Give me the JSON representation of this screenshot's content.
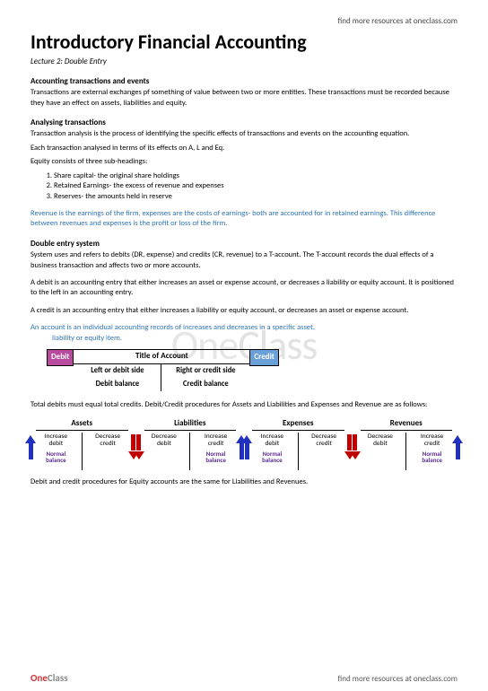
{
  "top_link": "find more resources at oneclass.com",
  "watermark": "OneClass",
  "title": "Introductory Financial Accounting",
  "subtitle": "Lecture 2: Double Entry",
  "s1_head": "Accounting transactions and events",
  "s1_body": "Transactions are external exchanges pf something of value between two or more entities. These transactions must be recorded because they have an effect on assets, liabilities and equity.",
  "s2_head": "Analysing transactions",
  "s2_body": "Transaction analysis is the process of identifying the specific effects of transactions and events on the accounting equation.",
  "s2_body2": "Each transaction analysed in terms of its effects on A, L and Eq.",
  "s2_body3": "Equity consists of three sub-headings:",
  "eq_list": [
    "Share capital- the original share holdings",
    "Retained Earnings- the excess of revenue and expenses",
    "Reserves- the amounts held in reserve"
  ],
  "blue1": "Revenue is the earnings of the firm, expenses are the costs of earnings- both are accounted for in retained earnings. This difference between revenues and expenses is the profit or loss of the firm.",
  "s3_head": "Double entry system",
  "s3_body": "System uses and refers to debits (DR, expense) and credits (CR, revenue) to a T-account. The T-account records the dual effects of a business transaction and affects two or more accounts.",
  "s3_body2": "A debit is an accounting entry that either increases an asset or expense account, or decreases a liability or equity account. It is positioned to the left in an accounting entry.",
  "s3_body3": "A credit is an accounting entry that either increases a liability or equity account, or decreases an asset or expense account.",
  "blue2a": "An account is an individual accounting records of increases and decreases in a specific asset,",
  "blue2b": "liability or equity item.",
  "t_account": {
    "debit": "Debit",
    "credit": "Credit",
    "title": "Title of Account",
    "left": "Left or debit side",
    "right": "Right or credit side",
    "dbal": "Debit balance",
    "cbal": "Credit balance"
  },
  "s4_body": "Total debits must equal total credits. Debit/Credit procedures for Assets and Liabilities and Expenses and Revenue are as follows:",
  "dc": {
    "blocks": [
      {
        "title": "Assets",
        "left": "Increase debit",
        "right": "Decrease credit",
        "left_arrow": "up",
        "right_arrow": "down",
        "normal_side": "left"
      },
      {
        "title": "Liabilities",
        "left": "Decrease debit",
        "right": "Increase credit",
        "left_arrow": "down",
        "right_arrow": "up",
        "normal_side": "right"
      },
      {
        "title": "Expenses",
        "left": "Increase debit",
        "right": "Decrease credit",
        "left_arrow": "up",
        "right_arrow": "down",
        "normal_side": "left"
      },
      {
        "title": "Revenues",
        "left": "Decrease debit",
        "right": "Increase credit",
        "left_arrow": "down",
        "right_arrow": "up",
        "normal_side": "right"
      }
    ],
    "normal_label": "Normal balance"
  },
  "s5_body": "Debit and credit procedures for Equity accounts are the same for Liabilities and Revenues.",
  "footer_logo": "OneClass",
  "footer_link": "find more resources at oneclass.com"
}
